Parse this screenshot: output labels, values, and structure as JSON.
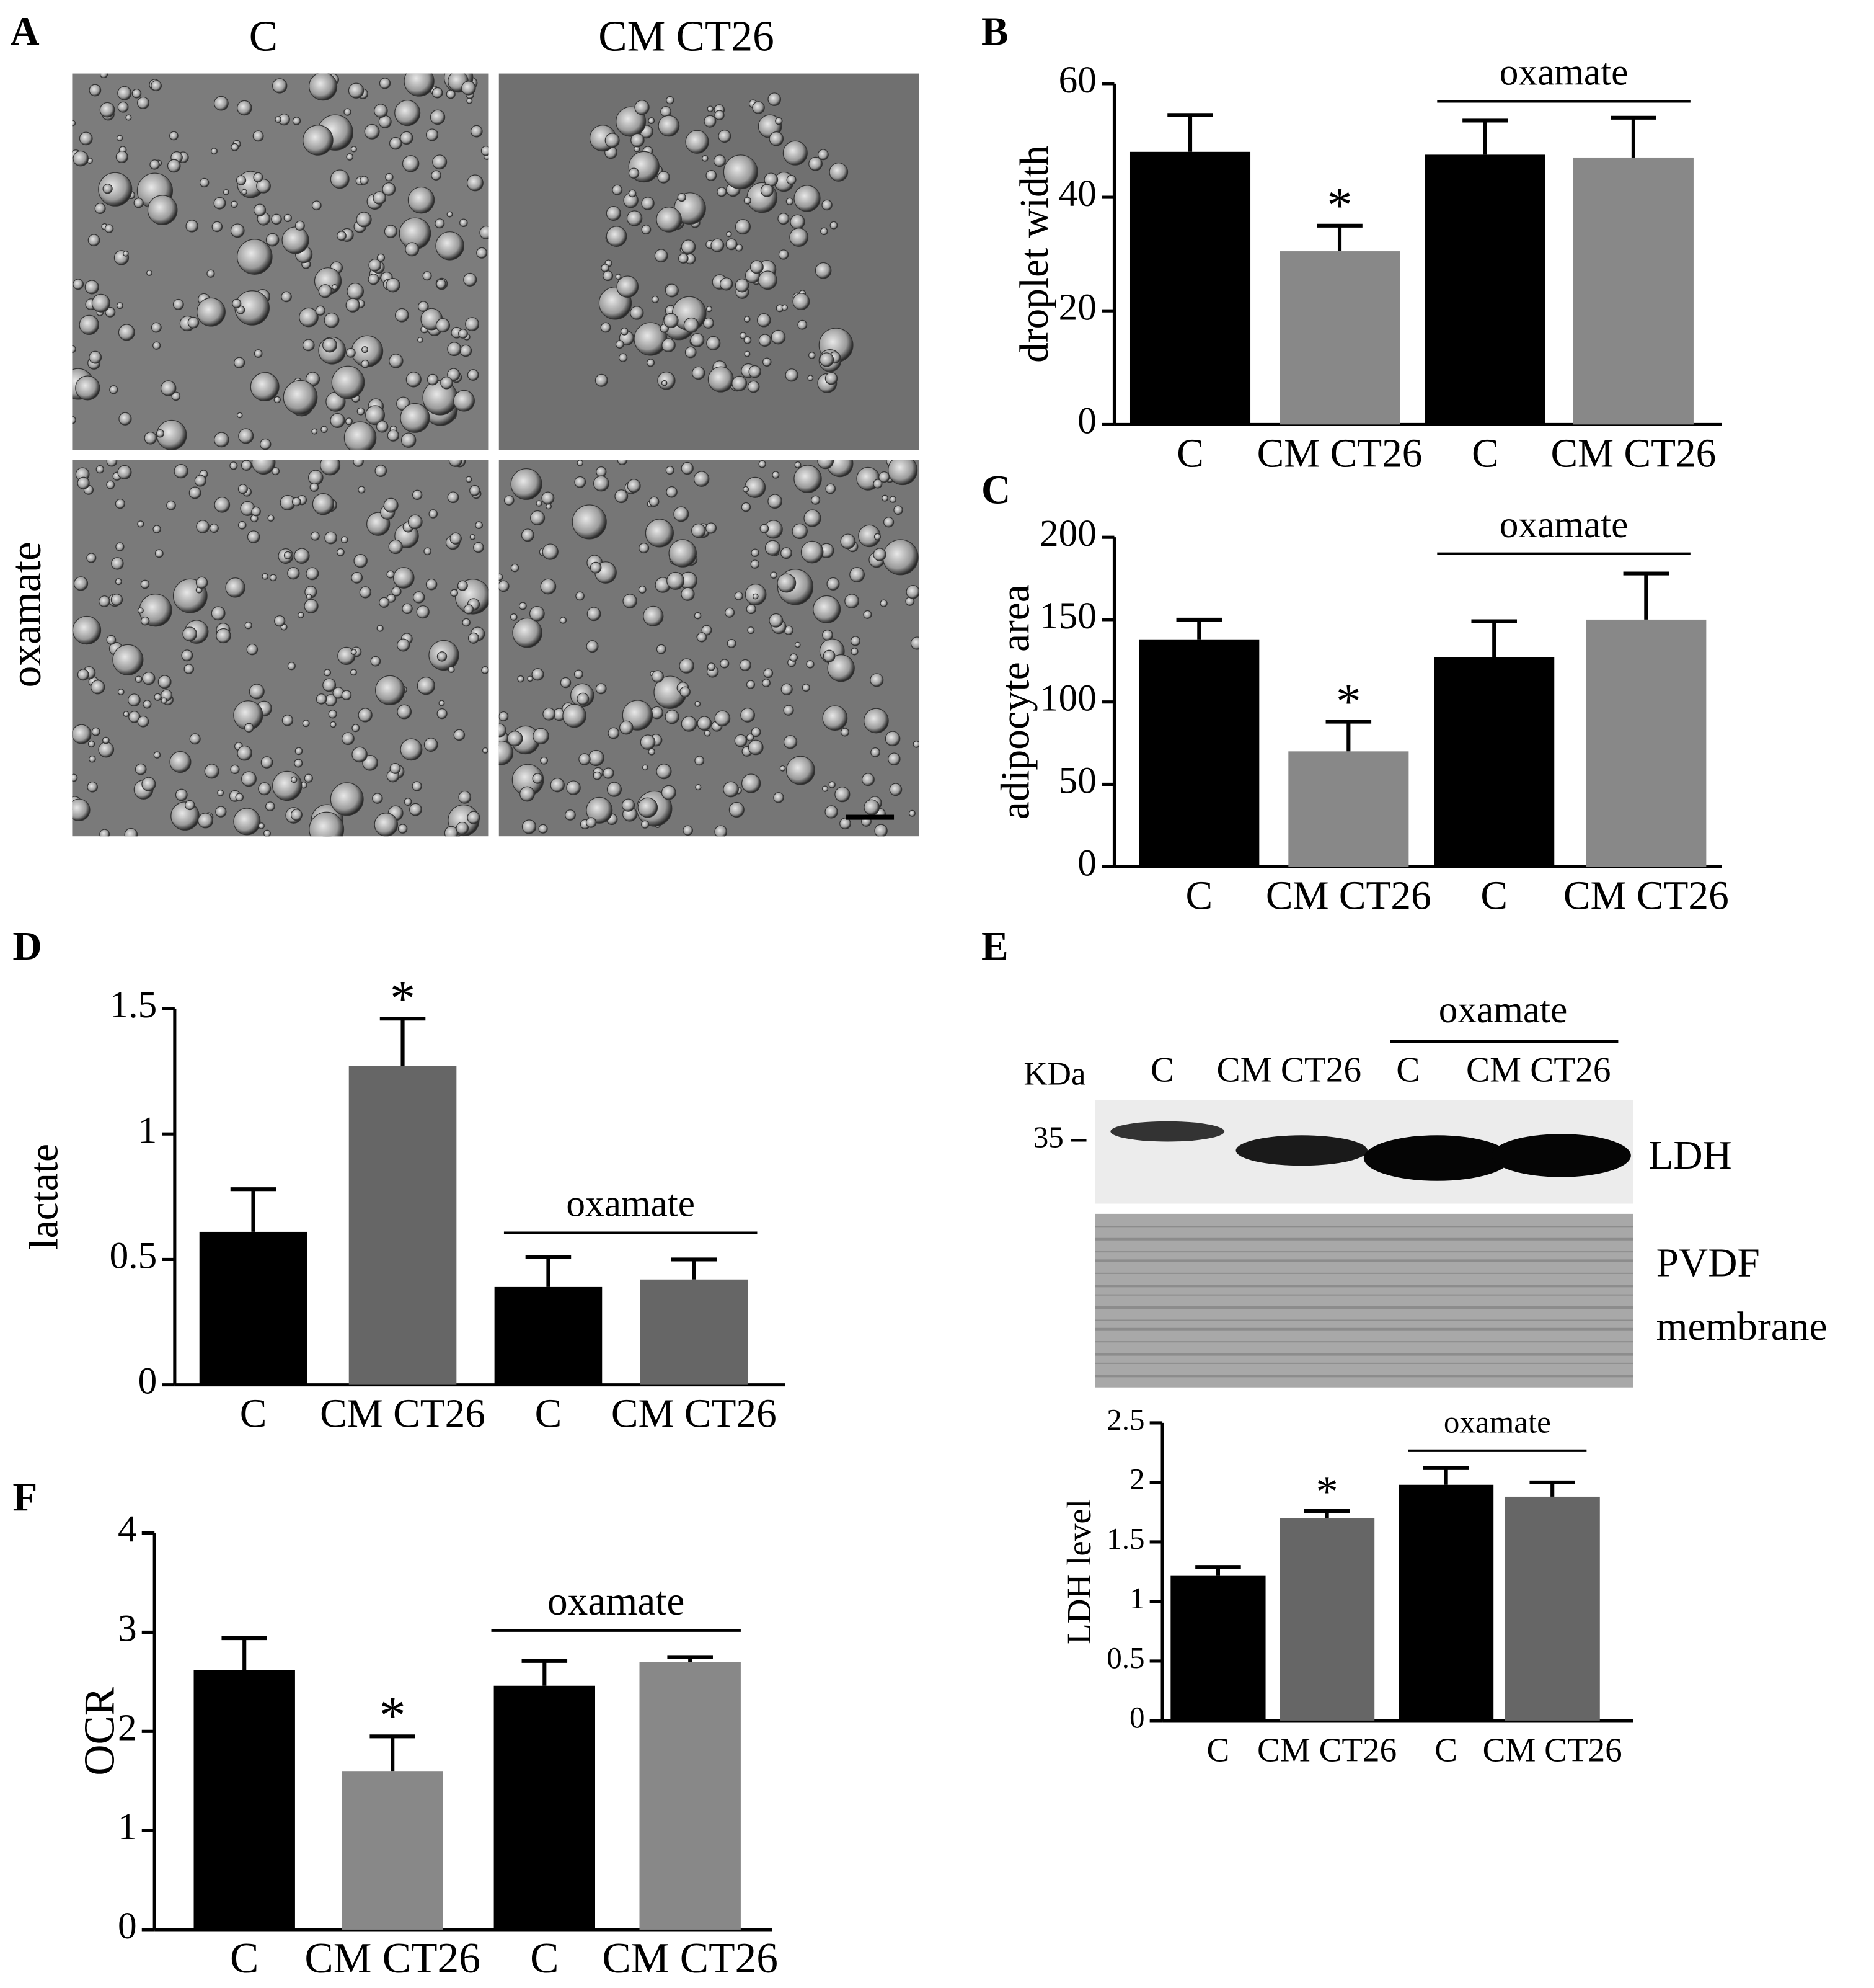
{
  "panel_a": {
    "label": "A",
    "columns": [
      "C",
      "CM CT26"
    ],
    "row_label": "oxamate"
  },
  "panel_e_blot": {
    "label": "E",
    "group_label": "oxamate",
    "lanes": [
      "C",
      "CM CT26",
      "C",
      "CM CT26"
    ],
    "unit": "KDa",
    "marker": "35",
    "band_label": "LDH",
    "loading_label": [
      "PVDF",
      "membrane"
    ]
  },
  "chart_data": [
    {
      "panel": "B",
      "type": "bar",
      "y_label": "droplet width",
      "categories": [
        "C",
        "CM CT26",
        "C",
        "CM CT26"
      ],
      "values": [
        48,
        30.5,
        47.5,
        47
      ],
      "errors": [
        6.5,
        4.5,
        6,
        7
      ],
      "colors": [
        "#000000",
        "#888888",
        "#000000",
        "#888888"
      ],
      "ylim": [
        0,
        60
      ],
      "yticks": [
        0,
        20,
        40,
        60
      ],
      "group_label": "oxamate",
      "significance": [
        null,
        "*",
        null,
        null
      ]
    },
    {
      "panel": "C",
      "type": "bar",
      "y_label": "adipocyte area",
      "categories": [
        "C",
        "CM CT26",
        "C",
        "CM CT26"
      ],
      "values": [
        138,
        70,
        127,
        150
      ],
      "errors": [
        12,
        18,
        22,
        28
      ],
      "colors": [
        "#000000",
        "#888888",
        "#000000",
        "#888888"
      ],
      "ylim": [
        0,
        200
      ],
      "yticks": [
        0,
        50,
        100,
        150,
        200
      ],
      "group_label": "oxamate",
      "significance": [
        null,
        "*",
        null,
        null
      ]
    },
    {
      "panel": "D",
      "type": "bar",
      "y_label": "lactate",
      "categories": [
        "C",
        "CM CT26",
        "C",
        "CM CT26"
      ],
      "values": [
        0.61,
        1.27,
        0.39,
        0.42
      ],
      "errors": [
        0.17,
        0.19,
        0.12,
        0.08
      ],
      "colors": [
        "#000000",
        "#666666",
        "#000000",
        "#666666"
      ],
      "ylim": [
        0,
        1.5
      ],
      "yticks": [
        0,
        0.5,
        1,
        1.5
      ],
      "group_label": "oxamate",
      "significance": [
        null,
        "*",
        null,
        null
      ]
    },
    {
      "type": "bar",
      "y_label": "LDH level",
      "categories": [
        "C",
        "CM CT26",
        "C",
        "CM CT26"
      ],
      "values": [
        1.22,
        1.7,
        1.98,
        1.88
      ],
      "errors": [
        0.07,
        0.06,
        0.14,
        0.12
      ],
      "colors": [
        "#000000",
        "#666666",
        "#000000",
        "#666666"
      ],
      "ylim": [
        0,
        2.5
      ],
      "yticks": [
        0,
        0.5,
        1,
        1.5,
        2,
        2.5
      ],
      "group_label": "oxamate",
      "significance": [
        null,
        "*",
        null,
        null
      ]
    },
    {
      "panel": "F",
      "type": "bar",
      "y_label": "OCR",
      "categories": [
        "C",
        "CM CT26",
        "C",
        "CM CT26"
      ],
      "values": [
        2.62,
        1.6,
        2.46,
        2.7
      ],
      "errors": [
        0.32,
        0.35,
        0.25,
        0.05
      ],
      "colors": [
        "#000000",
        "#888888",
        "#000000",
        "#888888"
      ],
      "ylim": [
        0,
        4
      ],
      "yticks": [
        0,
        1,
        2,
        3,
        4
      ],
      "group_label": "oxamate",
      "significance": [
        null,
        "*",
        null,
        null
      ]
    }
  ]
}
